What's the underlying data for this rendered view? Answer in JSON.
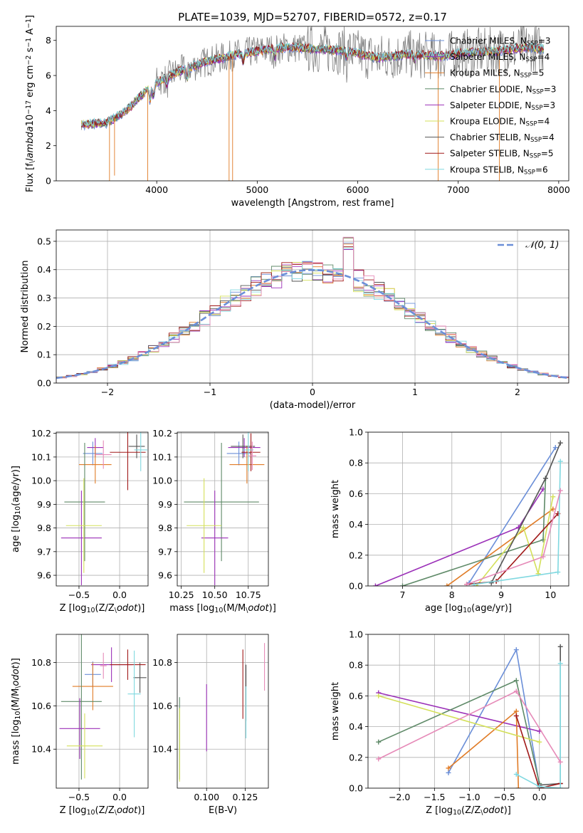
{
  "title": "PLATE=1039, MJD=52707, FIBERID=0572, z=0.17",
  "colors": {
    "data": "#808080",
    "Chabrier MILES": "#6b8fd8",
    "Salpeter MILES": "#9b30b8",
    "Kroupa MILES": "#e07b26",
    "Chabrier ELODIE": "#5f8a68",
    "Salpeter ELODIE": "#9b30b8",
    "Kroupa ELODIE": "#d4e05a",
    "Chabrier STELIB": "#555555",
    "Salpeter STELIB": "#a01818",
    "Kroupa STELIB": "#80d8e0",
    "Pink": "#e68ab8"
  },
  "chart_data": [
    {
      "type": "line",
      "xlabel": "wavelength [Angstrom, rest frame]",
      "ylabel": "Flux [f$_\\lambda$10$^{-17}$ erg cm$^{-2}$ s$^{-1}$ A$^{-1}$]",
      "xlim": [
        3000,
        8100
      ],
      "ylim": [
        0,
        8.8
      ],
      "xticks": [
        4000,
        5000,
        6000,
        7000,
        8000
      ],
      "yticks": [
        0,
        2,
        4,
        6,
        8
      ],
      "legend_placement": "right",
      "legend": [
        {
          "label": "Chabrier MILES, N",
          "sub": "SSP",
          "suffix": "=3"
        },
        {
          "label": "Salpeter MILES, N",
          "sub": "SSP",
          "suffix": "=4"
        },
        {
          "label": "Kroupa MILES, N",
          "sub": "SSP",
          "suffix": "=5"
        },
        {
          "label": "Chabrier ELODIE, N",
          "sub": "SSP",
          "suffix": "=3"
        },
        {
          "label": "Salpeter ELODIE, N",
          "sub": "SSP",
          "suffix": "=3"
        },
        {
          "label": "Kroupa ELODIE, N",
          "sub": "SSP",
          "suffix": "=4"
        },
        {
          "label": "Chabrier STELIB, N",
          "sub": "SSP",
          "suffix": "=4"
        },
        {
          "label": "Salpeter STELIB, N",
          "sub": "SSP",
          "suffix": "=5"
        },
        {
          "label": "Kroupa STELIB, N",
          "sub": "SSP",
          "suffix": "=6"
        }
      ],
      "continuum": [
        [
          3250,
          3.2
        ],
        [
          3500,
          3.3
        ],
        [
          3700,
          4.0
        ],
        [
          3900,
          5.2
        ],
        [
          4000,
          5.6
        ],
        [
          4200,
          6.2
        ],
        [
          4500,
          6.8
        ],
        [
          4800,
          7.2
        ],
        [
          5000,
          7.4
        ],
        [
          5300,
          7.6
        ],
        [
          5600,
          7.5
        ],
        [
          5900,
          7.4
        ],
        [
          6200,
          7.0
        ],
        [
          6500,
          7.2
        ],
        [
          6800,
          7.1
        ],
        [
          7100,
          7.3
        ],
        [
          7400,
          7.4
        ],
        [
          7700,
          7.6
        ],
        [
          7850,
          7.5
        ]
      ]
    },
    {
      "type": "bar",
      "xlabel": "(data-model)/error",
      "ylabel": "Normed distribution",
      "xlim": [
        -2.5,
        2.5
      ],
      "ylim": [
        0,
        0.54
      ],
      "xticks": [
        -2,
        -1,
        0,
        1,
        2
      ],
      "yticks": [
        0.0,
        0.1,
        0.2,
        0.3,
        0.4,
        0.5
      ],
      "grid": true,
      "legend_label": "𝒩(0, 1)",
      "legend_placement": "top-right"
    },
    {
      "type": "scatter",
      "xlabel": "Z [log$_{10}$(Z/Z$_\\odot$)]",
      "ylabel": "age  [log$_{10}$(age/yr)]",
      "xlim": [
        -0.78,
        0.35
      ],
      "ylim": [
        9.555,
        10.205
      ],
      "xticks": [
        -0.5,
        0.0
      ],
      "yticks": [
        9.6,
        9.7,
        9.8,
        9.9,
        10.0,
        10.1,
        10.2
      ],
      "errorbars": [
        {
          "c": "Chabrier MILES",
          "x": -0.33,
          "y": 10.115,
          "xerr": 0.12,
          "yerr": 0.05
        },
        {
          "c": "Salpeter MILES",
          "x": -0.3,
          "y": 10.14,
          "xerr": 0.1,
          "yerr": 0.04
        },
        {
          "c": "Kroupa MILES",
          "x": -0.3,
          "y": 10.068,
          "xerr": 0.2,
          "yerr": 0.08
        },
        {
          "c": "Chabrier ELODIE",
          "x": -0.43,
          "y": 9.91,
          "xerr": 0.25,
          "yerr": 0.25
        },
        {
          "c": "Salpeter ELODIE",
          "x": -0.47,
          "y": 9.758,
          "xerr": 0.25,
          "yerr": 0.2
        },
        {
          "c": "Kroupa ELODIE",
          "x": -0.44,
          "y": 9.81,
          "xerr": 0.22,
          "yerr": 0.2
        },
        {
          "c": "Chabrier STELIB",
          "x": 0.21,
          "y": 10.145,
          "xerr": 0.1,
          "yerr": 0.05
        },
        {
          "c": "Salpeter STELIB",
          "x": 0.1,
          "y": 10.12,
          "xerr": 0.22,
          "yerr": 0.16
        },
        {
          "c": "Kroupa STELIB",
          "x": 0.26,
          "y": 10.13,
          "xerr": 0.08,
          "yerr": 0.09
        },
        {
          "c": "Pink",
          "x": -0.2,
          "y": 10.11,
          "xerr": 0.1,
          "yerr": 0.06
        }
      ]
    },
    {
      "type": "scatter",
      "xlabel": "mass [log$_{10}$(M/M$_\\odot$)]",
      "ylabel": "",
      "xlim": [
        10.22,
        10.9
      ],
      "ylim": [
        9.555,
        10.205
      ],
      "xticks": [
        10.25,
        10.5,
        10.75
      ],
      "yticks": [
        9.6,
        9.7,
        9.8,
        9.9,
        10.0,
        10.1,
        10.2
      ],
      "errorbars": [
        {
          "c": "Chabrier MILES",
          "x": 10.68,
          "y": 10.115,
          "xerr": 0.09,
          "yerr": 0.05
        },
        {
          "c": "Salpeter MILES",
          "x": 10.72,
          "y": 10.14,
          "xerr": 0.12,
          "yerr": 0.04
        },
        {
          "c": "Kroupa MILES",
          "x": 10.74,
          "y": 10.068,
          "xerr": 0.13,
          "yerr": 0.08
        },
        {
          "c": "Chabrier ELODIE",
          "x": 10.55,
          "y": 9.91,
          "xerr": 0.28,
          "yerr": 0.25
        },
        {
          "c": "Salpeter ELODIE",
          "x": 10.5,
          "y": 9.758,
          "xerr": 0.1,
          "yerr": 0.2
        },
        {
          "c": "Kroupa ELODIE",
          "x": 10.42,
          "y": 9.81,
          "xerr": 0.13,
          "yerr": 0.2
        },
        {
          "c": "Chabrier STELIB",
          "x": 10.71,
          "y": 10.145,
          "xerr": 0.09,
          "yerr": 0.05
        },
        {
          "c": "Salpeter STELIB",
          "x": 10.77,
          "y": 10.12,
          "xerr": 0.07,
          "yerr": 0.08
        },
        {
          "c": "Kroupa STELIB",
          "x": 10.75,
          "y": 10.13,
          "xerr": 0.04,
          "yerr": 0.09
        },
        {
          "c": "Pink",
          "x": 10.78,
          "y": 10.105,
          "xerr": 0.03,
          "yerr": 0.06
        }
      ]
    },
    {
      "type": "line",
      "xlabel": "age  [log$_{10}$(age/yr)]",
      "ylabel": "mass weight",
      "xlim": [
        6.3,
        10.37
      ],
      "ylim": [
        0,
        1.0
      ],
      "xticks": [
        7,
        8,
        9,
        10
      ],
      "yticks": [
        0.0,
        0.2,
        0.4,
        0.6,
        0.8,
        1.0
      ],
      "grid": true,
      "series": [
        {
          "c": "Chabrier MILES",
          "x": [
            8.35,
            10.1
          ],
          "y": [
            0.02,
            0.9
          ]
        },
        {
          "c": "Salpeter ELODIE",
          "x": [
            6.45,
            9.35,
            9.85
          ],
          "y": [
            0.0,
            0.38,
            0.63
          ]
        },
        {
          "c": "Kroupa MILES",
          "x": [
            7.9,
            10.05
          ],
          "y": [
            0.0,
            0.5
          ]
        },
        {
          "c": "Chabrier ELODIE",
          "x": [
            7.0,
            9.85,
            9.9
          ],
          "y": [
            0.0,
            0.3,
            0.7
          ]
        },
        {
          "c": "Kroupa ELODIE",
          "x": [
            8.5,
            9.45,
            9.75,
            10.05
          ],
          "y": [
            0.0,
            0.38,
            0.08,
            0.58
          ]
        },
        {
          "c": "Chabrier STELIB",
          "x": [
            8.8,
            9.9,
            10.2
          ],
          "y": [
            0.02,
            0.7,
            0.93
          ]
        },
        {
          "c": "Salpeter STELIB",
          "x": [
            8.3,
            8.9,
            10.15
          ],
          "y": [
            0.01,
            0.03,
            0.47
          ]
        },
        {
          "c": "Kroupa STELIB",
          "x": [
            8.45,
            10.15,
            10.2
          ],
          "y": [
            0.01,
            0.09,
            0.81
          ]
        },
        {
          "c": "Pink",
          "x": [
            8.3,
            9.85,
            10.2
          ],
          "y": [
            0.01,
            0.19,
            0.62
          ]
        }
      ]
    },
    {
      "type": "scatter",
      "xlabel": "Z [log$_{10}$(Z/Z$_\\odot$)]",
      "ylabel": "mass [log$_{10}$(M/M$_\\odot$)]",
      "xlim": [
        -0.78,
        0.35
      ],
      "ylim": [
        10.22,
        10.93
      ],
      "xticks": [
        -0.5,
        0.0
      ],
      "yticks": [
        10.4,
        10.6,
        10.8
      ],
      "errorbars": [
        {
          "c": "Chabrier MILES",
          "x": -0.33,
          "y": 10.745,
          "xerr": 0.1,
          "yerr": 0.06
        },
        {
          "c": "Salpeter MILES",
          "x": -0.1,
          "y": 10.79,
          "xerr": 0.25,
          "yerr": 0.08
        },
        {
          "c": "Kroupa MILES",
          "x": -0.33,
          "y": 10.69,
          "xerr": 0.25,
          "yerr": 0.11
        },
        {
          "c": "Chabrier ELODIE",
          "x": -0.47,
          "y": 10.62,
          "xerr": 0.25,
          "yerr": 0.36
        },
        {
          "c": "Salpeter ELODIE",
          "x": -0.49,
          "y": 10.495,
          "xerr": 0.25,
          "yerr": 0.14
        },
        {
          "c": "Kroupa ELODIE",
          "x": -0.43,
          "y": 10.415,
          "xerr": 0.22,
          "yerr": 0.15
        },
        {
          "c": "Chabrier STELIB",
          "x": 0.25,
          "y": 10.73,
          "xerr": 0.08,
          "yerr": 0.07
        },
        {
          "c": "Salpeter STELIB",
          "x": 0.1,
          "y": 10.79,
          "xerr": 0.22,
          "yerr": 0.07
        },
        {
          "c": "Kroupa STELIB",
          "x": 0.18,
          "y": 10.655,
          "xerr": 0.08,
          "yerr": 0.2
        },
        {
          "c": "Pink",
          "x": -0.2,
          "y": 10.785,
          "xerr": 0.04,
          "yerr": 0.06
        }
      ]
    },
    {
      "type": "scatter",
      "xlabel": "E(B-V)",
      "ylabel": "",
      "xlim": [
        0.081,
        0.14
      ],
      "ylim": [
        10.22,
        10.93
      ],
      "xticks": [
        0.1,
        0.125
      ],
      "yticks": [
        10.4,
        10.6,
        10.8
      ],
      "errorbars": [
        {
          "c": "Chabrier ELODIE",
          "x": 0.0825,
          "y": 10.45,
          "xerr": 0,
          "yerr": 0.19
        },
        {
          "c": "Kroupa ELODIE",
          "x": 0.0825,
          "y": 10.42,
          "xerr": 0,
          "yerr": 0.17
        },
        {
          "c": "Salpeter ELODIE",
          "x": 0.1,
          "y": 10.545,
          "xerr": 0,
          "yerr": 0.155
        },
        {
          "c": "Salpeter STELIB",
          "x": 0.1235,
          "y": 10.7,
          "xerr": 0,
          "yerr": 0.16
        },
        {
          "c": "Chabrier STELIB",
          "x": 0.1255,
          "y": 10.66,
          "xerr": 0,
          "yerr": 0.13
        },
        {
          "c": "Kroupa STELIB",
          "x": 0.1255,
          "y": 10.57,
          "xerr": 0,
          "yerr": 0.12
        },
        {
          "c": "Pink",
          "x": 0.1375,
          "y": 10.78,
          "xerr": 0,
          "yerr": 0.11
        }
      ]
    },
    {
      "type": "line",
      "xlabel": "Z [log$_{10}$(Z/Z$_\\odot$)]",
      "ylabel": "mass weight",
      "xlim": [
        -2.45,
        0.42
      ],
      "ylim": [
        0,
        1.0
      ],
      "xticks": [
        -2.0,
        -1.5,
        -1.0,
        -0.5,
        0.0
      ],
      "yticks": [
        0.0,
        0.2,
        0.4,
        0.6,
        0.8,
        1.0
      ],
      "grid": true,
      "series": [
        {
          "c": "Chabrier MILES",
          "x": [
            -1.3,
            -0.33,
            0.0
          ],
          "y": [
            0.1,
            0.9,
            0.02
          ]
        },
        {
          "c": "Salpeter ELODIE",
          "x": [
            -2.3,
            0.0
          ],
          "y": [
            0.62,
            0.37
          ]
        },
        {
          "c": "Kroupa MILES",
          "x": [
            -1.3,
            -0.33,
            -0.3
          ],
          "y": [
            0.13,
            0.5,
            0.0
          ]
        },
        {
          "c": "Chabrier ELODIE",
          "x": [
            -2.3,
            -0.33,
            0.0
          ],
          "y": [
            0.3,
            0.7,
            0.03
          ]
        },
        {
          "c": "Kroupa ELODIE",
          "x": [
            -2.3,
            0.0
          ],
          "y": [
            0.6,
            0.3
          ]
        },
        {
          "c": "Chabrier STELIB",
          "x": [
            0.0,
            0.3,
            0.3
          ],
          "y": [
            0.02,
            0.03,
            0.92
          ]
        },
        {
          "c": "Salpeter STELIB",
          "x": [
            -0.33,
            0.0,
            0.3
          ],
          "y": [
            0.47,
            0.0,
            0.03
          ]
        },
        {
          "c": "Kroupa STELIB",
          "x": [
            -0.33,
            0.0,
            0.3,
            0.3
          ],
          "y": [
            0.09,
            0.01,
            0.0,
            0.81
          ]
        },
        {
          "c": "Pink",
          "x": [
            -2.3,
            -0.33,
            0.3
          ],
          "y": [
            0.19,
            0.63,
            0.17
          ]
        }
      ]
    }
  ]
}
